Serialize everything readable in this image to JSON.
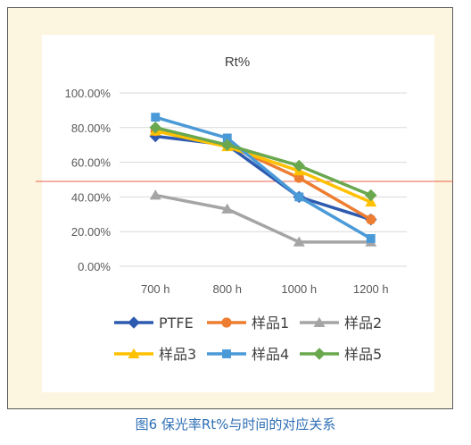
{
  "caption": "图6 保光率Rt%与时间的对应关系",
  "chart_data": {
    "type": "line",
    "title": "Rt%",
    "categories": [
      "700 h",
      "800 h",
      "1000 h",
      "1200 h"
    ],
    "ylim": [
      0,
      1
    ],
    "yticks": [
      0,
      0.2,
      0.4,
      0.6,
      0.8,
      1.0
    ],
    "ytick_labels": [
      "0.00%",
      "20.00%",
      "40.00%",
      "60.00%",
      "80.00%",
      "100.00%"
    ],
    "grid": true,
    "legend_position": "bottom",
    "reference_line": {
      "value": 0.49,
      "color": "#e8614a"
    },
    "series": [
      {
        "name": "PTFE",
        "color": "#2e5bb0",
        "marker": "diamond",
        "values": [
          0.75,
          0.7,
          0.4,
          0.27
        ]
      },
      {
        "name": "样品1",
        "color": "#ed7d31",
        "marker": "circle",
        "values": [
          0.78,
          0.7,
          0.51,
          0.27
        ]
      },
      {
        "name": "样品2",
        "color": "#a5a5a5",
        "marker": "triangle",
        "values": [
          0.41,
          0.33,
          0.14,
          0.14
        ]
      },
      {
        "name": "样品3",
        "color": "#ffc000",
        "marker": "triangle",
        "values": [
          0.78,
          0.69,
          0.55,
          0.37
        ]
      },
      {
        "name": "样品4",
        "color": "#4b9ad8",
        "marker": "square",
        "values": [
          0.86,
          0.74,
          0.4,
          0.16
        ]
      },
      {
        "name": "样品5",
        "color": "#6aa84f",
        "marker": "diamond",
        "values": [
          0.8,
          0.7,
          0.58,
          0.41
        ]
      }
    ]
  }
}
